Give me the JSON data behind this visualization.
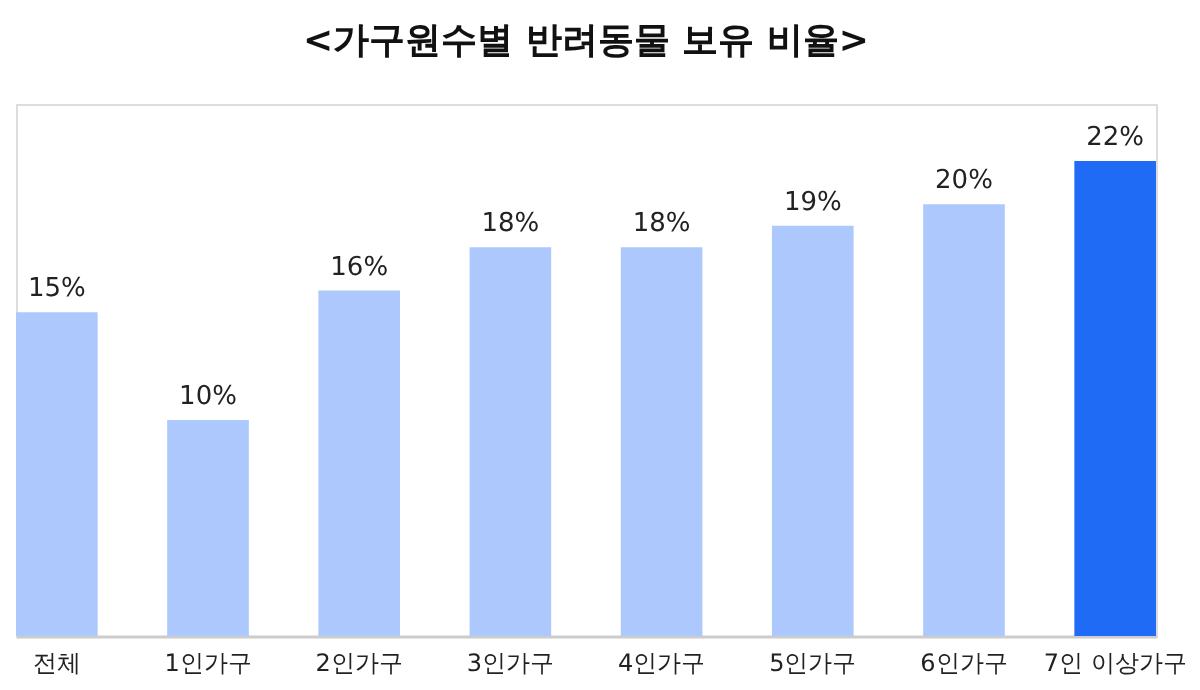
{
  "chart_data": {
    "type": "bar",
    "title": "<가구원수별 반려동물 보유 비율>",
    "categories": [
      "전체",
      "1인가구",
      "2인가구",
      "3인가구",
      "4인가구",
      "5인가구",
      "6인가구",
      "7인 이상가구"
    ],
    "values": [
      15,
      10,
      16,
      18,
      18,
      19,
      20,
      22
    ],
    "colors": [
      "#adc8fd",
      "#adc8fd",
      "#adc8fd",
      "#adc8fd",
      "#adc8fd",
      "#adc8fd",
      "#adc8fd",
      "#1f6bf5"
    ],
    "value_labels": [
      "15%",
      "10%",
      "16%",
      "18%",
      "18%",
      "19%",
      "20%",
      "22%"
    ]
  }
}
